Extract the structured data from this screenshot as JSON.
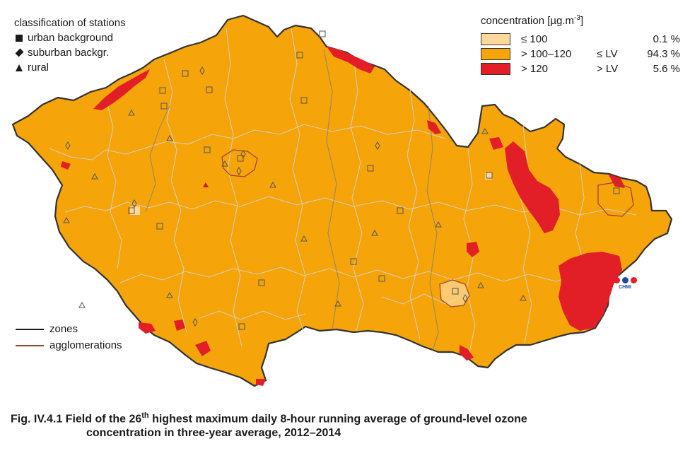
{
  "station_legend": {
    "title": "classification of stations",
    "items": [
      {
        "symbol": "square",
        "label": "urban background"
      },
      {
        "symbol": "diamond",
        "label": "suburban backgr."
      },
      {
        "symbol": "triangle",
        "label": "rural"
      }
    ]
  },
  "concentration_legend": {
    "title_main": "concentration [µg.m",
    "title_exp": "-3",
    "title_end": "]",
    "classes": [
      {
        "range": "≤ 100",
        "lv": "",
        "percent": "0.1 %",
        "color": "#fcd99b"
      },
      {
        "range": "> 100–120",
        "lv": "≤ LV",
        "percent": "94.3 %",
        "color": "#f5a40a"
      },
      {
        "range": "> 120",
        "lv": "> LV",
        "percent": "5.6 %",
        "color": "#e21f26"
      }
    ]
  },
  "boundary_legend": {
    "items": [
      {
        "label": "zones",
        "color": "#1a1a1a"
      },
      {
        "label": "agglomerations",
        "color": "#a0402a"
      }
    ]
  },
  "logo": {
    "text": "CHMI"
  },
  "caption": {
    "prefix": "Fig. IV.4.1  Field of the 26",
    "sup": "th",
    "line1_rest": " highest maximum daily 8-hour running average of ground-level ozone",
    "line2": "concentration in three-year average, 2012–2014"
  },
  "colors": {
    "map_fill": "#f5a40a",
    "high": "#e21f26",
    "low": "#fcd99b",
    "district_lines": "#d9d0bf",
    "outline": "#333333",
    "agglomeration": "#a0402a"
  }
}
